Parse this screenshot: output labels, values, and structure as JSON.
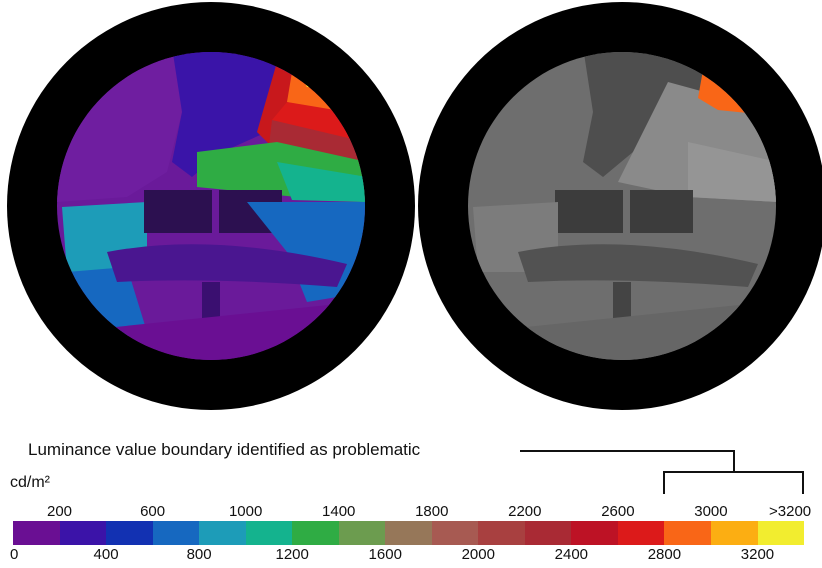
{
  "annotation": "Luminance value boundary identified as problematic",
  "unit": "cd/m²",
  "legend": {
    "colors": [
      "#6a0f93",
      "#3b13a8",
      "#1231b2",
      "#1668c0",
      "#1d9cb8",
      "#14b38e",
      "#2fac44",
      "#6c9c4f",
      "#967759",
      "#a75a52",
      "#a84040",
      "#a92a34",
      "#bd1225",
      "#dc1a1a",
      "#f96617",
      "#fcae12",
      "#f2ed2f"
    ],
    "top_ticks": [
      "200",
      "600",
      "1000",
      "1400",
      "1800",
      "2200",
      "2600",
      "3000",
      ">3200"
    ],
    "bottom_ticks": [
      "0",
      "400",
      "800",
      "1200",
      "1600",
      "2000",
      "2400",
      "2800",
      "3200"
    ]
  },
  "images": {
    "left": "false-color fisheye luminance map",
    "right": "grayscale fisheye luminance map with problematic area highlighted"
  }
}
